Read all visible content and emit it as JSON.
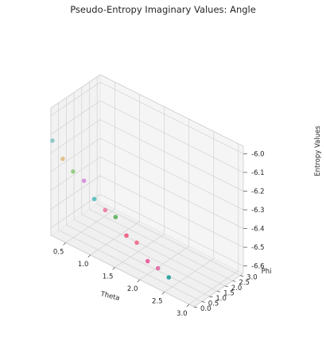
{
  "chart_data": {
    "type": "scatter",
    "title": "Pseudo-Entropy Imaginary Values: Angle",
    "xlabel": "Theta",
    "ylabel": "Phi",
    "zlabel": "Entropy Values",
    "x_ticks": [
      "0.5",
      "1.0",
      "1.5",
      "2.0",
      "2.5",
      "3.0"
    ],
    "y_ticks": [
      "0.0",
      "0.5",
      "1.0",
      "1.5",
      "2.0",
      "2.5",
      "3.0"
    ],
    "z_ticks": [
      "-6.0",
      "-6.1",
      "-6.2",
      "-6.3",
      "-6.4",
      "-6.5",
      "-6.6"
    ],
    "xlim": [
      0.2,
      3.1
    ],
    "ylim": [
      0.0,
      3.2
    ],
    "zlim": [
      -6.64,
      -5.96
    ],
    "grid": true,
    "points": [
      {
        "theta": 0.23,
        "phi": 0.0,
        "value": -6.13,
        "color": "#89c4c6"
      },
      {
        "theta": 0.44,
        "phi": 0.0,
        "value": -6.2,
        "color": "#dcc089"
      },
      {
        "theta": 0.65,
        "phi": 0.0,
        "value": -6.24,
        "color": "#8fcc7f"
      },
      {
        "theta": 0.87,
        "phi": 0.0,
        "value": -6.26,
        "color": "#d68fdb"
      },
      {
        "theta": 1.08,
        "phi": 0.0,
        "value": -6.33,
        "color": "#5fbfbf"
      },
      {
        "theta": 1.3,
        "phi": 0.0,
        "value": -6.36,
        "color": "#ee7fa5"
      },
      {
        "theta": 1.51,
        "phi": 0.0,
        "value": -6.37,
        "color": "#5fb35f"
      },
      {
        "theta": 1.73,
        "phi": 0.0,
        "value": -6.44,
        "color": "#ee5f85"
      },
      {
        "theta": 1.94,
        "phi": 0.0,
        "value": -6.45,
        "color": "#ef6f8d"
      },
      {
        "theta": 2.16,
        "phi": 0.0,
        "value": -6.52,
        "color": "#e8609c"
      },
      {
        "theta": 2.37,
        "phi": 0.0,
        "value": -6.53,
        "color": "#e36fa8"
      },
      {
        "theta": 2.59,
        "phi": 0.0,
        "value": -6.55,
        "color": "#2aa1a1"
      }
    ]
  }
}
